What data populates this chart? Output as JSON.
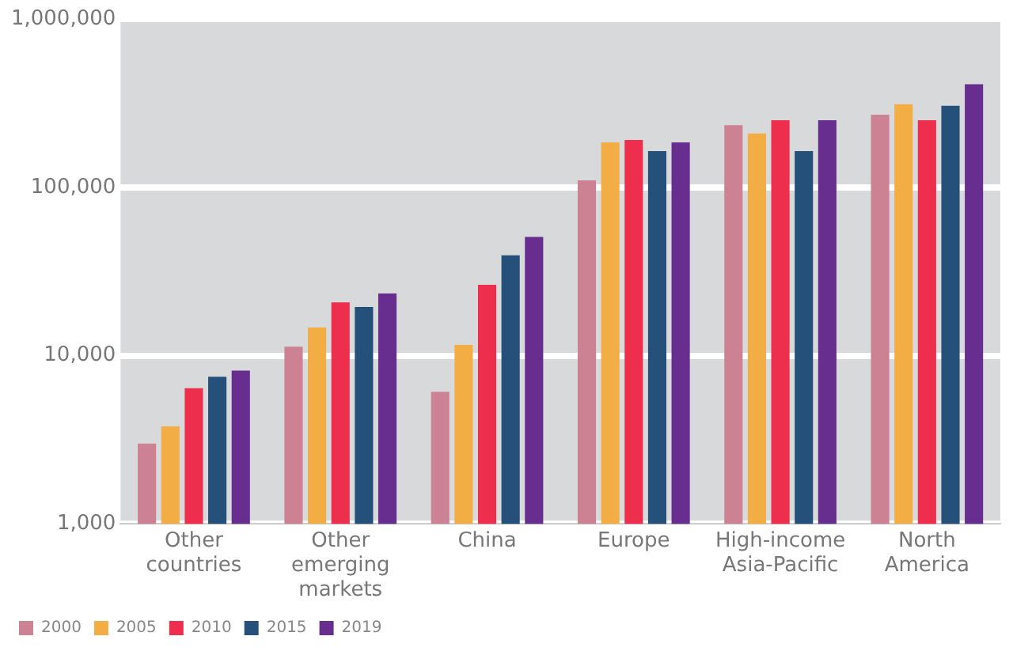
{
  "chart_data": {
    "type": "bar",
    "log": "y",
    "grid": "y",
    "legend": "bottom left",
    "categories": [
      "Other countries",
      "Other emerging markets",
      "China",
      "Europe",
      "High-income Asia-Pacific",
      "North America"
    ],
    "series": [
      {
        "name": "2000",
        "color": "#cc8292",
        "values": [
          3000,
          11300,
          6100,
          110000,
          234000,
          270000
        ]
      },
      {
        "name": "2005",
        "color": "#f3ad45",
        "values": [
          3800,
          14700,
          11600,
          185000,
          209000,
          312000
        ]
      },
      {
        "name": "2010",
        "color": "#ee2e4d",
        "values": [
          6400,
          20700,
          26400,
          191000,
          250000,
          250000
        ]
      },
      {
        "name": "2015",
        "color": "#245079",
        "values": [
          7500,
          19500,
          39500,
          164000,
          164000,
          305000
        ]
      },
      {
        "name": "2019",
        "color": "#672d8f",
        "values": [
          8150,
          23400,
          50700,
          185000,
          250000,
          410000
        ]
      }
    ],
    "ylim": [
      1000,
      1000000
    ],
    "yticks": [
      {
        "value": 1000,
        "label": "1,000"
      },
      {
        "value": 10000,
        "label": "10,000"
      },
      {
        "value": 100000,
        "label": "100,000"
      },
      {
        "value": 1000000,
        "label": "1,000,000"
      }
    ]
  }
}
